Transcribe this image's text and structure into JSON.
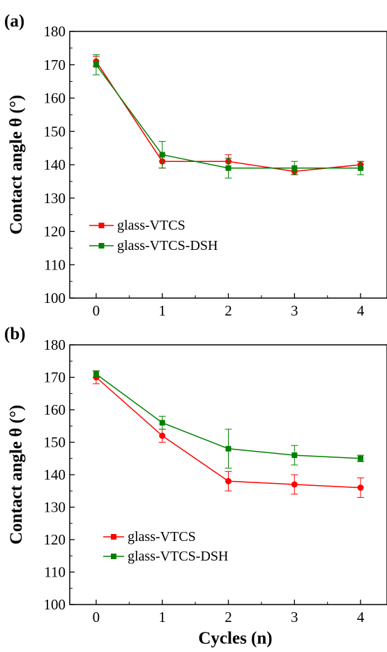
{
  "chart_data": [
    {
      "type": "line",
      "panel_label": "(a)",
      "xlabel": "",
      "ylabel": "Contact angle θ (°)",
      "xlim": [
        -0.4,
        4.4
      ],
      "ylim": [
        100,
        180
      ],
      "xticks": [
        0,
        1,
        2,
        3,
        4
      ],
      "yticks": [
        100,
        110,
        120,
        130,
        140,
        150,
        160,
        170,
        180
      ],
      "legend_position": "lower-left",
      "grid": false,
      "series": [
        {
          "name": "glass-VTCS",
          "color": "#ff0000",
          "marker": "circle",
          "x": [
            0,
            1,
            2,
            3,
            4
          ],
          "y": [
            171,
            141,
            141,
            138,
            140
          ],
          "err": [
            1.5,
            2,
            2,
            1,
            1
          ]
        },
        {
          "name": "glass-VTCS-DSH",
          "color": "#008000",
          "marker": "square",
          "x": [
            0,
            1,
            2,
            3,
            4
          ],
          "y": [
            170,
            143,
            139,
            139,
            139
          ],
          "err": [
            3,
            4,
            3,
            2,
            2
          ]
        }
      ]
    },
    {
      "type": "line",
      "panel_label": "(b)",
      "xlabel": "Cycles (n)",
      "ylabel": "Contact angle θ (°)",
      "xlim": [
        -0.4,
        4.4
      ],
      "ylim": [
        100,
        180
      ],
      "xticks": [
        0,
        1,
        2,
        3,
        4
      ],
      "yticks": [
        100,
        110,
        120,
        130,
        140,
        150,
        160,
        170,
        180
      ],
      "legend_position": "lower-left",
      "grid": false,
      "series": [
        {
          "name": "glass-VTCS",
          "color": "#ff0000",
          "marker": "circle",
          "x": [
            0,
            1,
            2,
            3,
            4
          ],
          "y": [
            170,
            152,
            138,
            137,
            136
          ],
          "err": [
            2,
            2,
            3,
            3,
            3
          ]
        },
        {
          "name": "glass-VTCS-DSH",
          "color": "#008000",
          "marker": "square",
          "x": [
            0,
            1,
            2,
            3,
            4
          ],
          "y": [
            171,
            156,
            148,
            146,
            145
          ],
          "err": [
            1,
            2,
            6,
            3,
            1
          ]
        }
      ]
    }
  ]
}
